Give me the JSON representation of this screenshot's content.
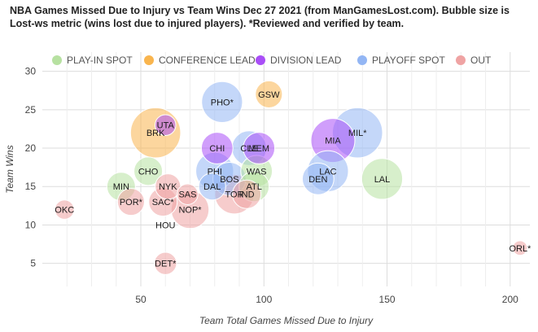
{
  "chart_data": {
    "type": "scatter",
    "subtype": "bubble",
    "title": "NBA Games Missed Due to Injury vs Team Wins Dec 27 2021 (from ManGamesLost.com). Bubble size is Lost-ws metric (wins lost due to injured players). *Reviewed and verified by team.",
    "xlabel": "Team Total Games Missed Due to Injury",
    "ylabel": "Team Wins",
    "xlim": [
      10,
      208
    ],
    "ylim": [
      2,
      32.5
    ],
    "xticks": [
      50,
      100,
      150,
      200
    ],
    "yticks": [
      5,
      10,
      15,
      20,
      25,
      30
    ],
    "grid": true,
    "legend_position": "top",
    "series": [
      {
        "name": "PLAY-IN SPOT",
        "color": "#b7e1a1",
        "points": [
          {
            "label": "CHO",
            "x": 53,
            "y": 17,
            "size": 1.0
          },
          {
            "label": "MIN",
            "x": 42,
            "y": 15,
            "size": 1.0
          },
          {
            "label": "WAS",
            "x": 97,
            "y": 17,
            "size": 1.2
          },
          {
            "label": "ATL",
            "x": 96,
            "y": 15,
            "size": 1.1
          },
          {
            "label": "LAL",
            "x": 148,
            "y": 16,
            "size": 1.8
          }
        ]
      },
      {
        "name": "CONFERENCE LEAD",
        "color": "#f9b54e",
        "points": [
          {
            "label": "BRK",
            "x": 56,
            "y": 22,
            "size": 2.4
          },
          {
            "label": "GSW",
            "x": 102,
            "y": 27,
            "size": 0.9
          }
        ]
      },
      {
        "name": "DIVISION LEAD",
        "color": "#a94ef7",
        "points": [
          {
            "label": "UTA",
            "x": 60,
            "y": 23,
            "size": 0.5
          },
          {
            "label": "CHI",
            "x": 81,
            "y": 20,
            "size": 1.2
          },
          {
            "label": "MEM",
            "x": 98,
            "y": 20,
            "size": 1.2
          },
          {
            "label": "MIA",
            "x": 128,
            "y": 21,
            "size": 2.0
          }
        ]
      },
      {
        "name": "PLAYOFF SPOT",
        "color": "#93b6f4",
        "points": [
          {
            "label": "PHO*",
            "x": 83,
            "y": 26,
            "size": 1.8
          },
          {
            "label": "MIL*",
            "x": 138,
            "y": 22,
            "size": 2.4
          },
          {
            "label": "PHI",
            "x": 80,
            "y": 17,
            "size": 1.6
          },
          {
            "label": "CLE",
            "x": 94,
            "y": 20,
            "size": 1.4
          },
          {
            "label": "DAL",
            "x": 79,
            "y": 15,
            "size": 0.9
          },
          {
            "label": "BOS",
            "x": 86,
            "y": 16,
            "size": 1.3
          },
          {
            "label": "LAC",
            "x": 126,
            "y": 17,
            "size": 1.8
          },
          {
            "label": "DEN",
            "x": 122,
            "y": 16,
            "size": 1.2
          }
        ]
      },
      {
        "name": "OUT",
        "color": "#efa3a3",
        "points": [
          {
            "label": "OKC",
            "x": 19,
            "y": 12,
            "size": 0.4
          },
          {
            "label": "POR*",
            "x": 46,
            "y": 13,
            "size": 0.9
          },
          {
            "label": "NYK",
            "x": 61,
            "y": 15,
            "size": 0.8
          },
          {
            "label": "SAC*",
            "x": 59,
            "y": 13,
            "size": 1.0
          },
          {
            "label": "SAS",
            "x": 69,
            "y": 14,
            "size": 0.5
          },
          {
            "label": "NOP*",
            "x": 70,
            "y": 12,
            "size": 1.6
          },
          {
            "label": "HOU",
            "x": 60,
            "y": 10,
            "size": 0.0
          },
          {
            "label": "TOR",
            "x": 88,
            "y": 14,
            "size": 1.7
          },
          {
            "label": "IND",
            "x": 93,
            "y": 14,
            "size": 1.0
          },
          {
            "label": "DET*",
            "x": 60,
            "y": 5,
            "size": 0.6
          },
          {
            "label": "ORL*",
            "x": 204,
            "y": 7,
            "size": 0.1
          }
        ]
      }
    ]
  }
}
